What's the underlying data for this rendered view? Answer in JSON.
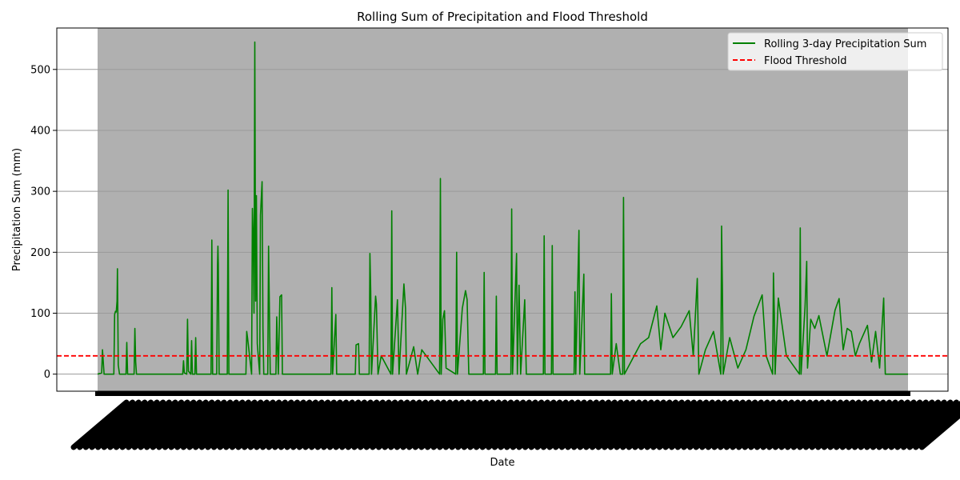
{
  "chart_data": {
    "type": "line",
    "title": "Rolling Sum of Precipitation and Flood Threshold",
    "xlabel": "Date",
    "ylabel": "Precipitation Sum (mm)",
    "ylim": [
      -28,
      568
    ],
    "yticks": [
      0,
      100,
      200,
      300,
      400,
      500
    ],
    "grid": "y-axis gridlines",
    "legend_position": "top-right",
    "x_tick_labels": "dense rotated date labels (illegible)",
    "colors": {
      "rolling_line": "#008000",
      "threshold_line": "#ff0000",
      "plot_background": "#b0b0b0",
      "gridline": "#b0b0b0"
    },
    "series": [
      {
        "name": "Rolling 3-day Precipitation Sum",
        "style": "solid",
        "color": "#008000",
        "points": [
          [
            0.0,
            0
          ],
          [
            0.5,
            2
          ],
          [
            0.6,
            40
          ],
          [
            0.8,
            0
          ],
          [
            1.0,
            0
          ],
          [
            2.0,
            0
          ],
          [
            2.1,
            98
          ],
          [
            2.2,
            103
          ],
          [
            2.3,
            102
          ],
          [
            2.4,
            120
          ],
          [
            2.45,
            173
          ],
          [
            2.55,
            15
          ],
          [
            2.7,
            0
          ],
          [
            3.5,
            0
          ],
          [
            3.6,
            52
          ],
          [
            3.7,
            0
          ],
          [
            4.5,
            0
          ],
          [
            4.6,
            75
          ],
          [
            4.7,
            20
          ],
          [
            4.8,
            0
          ],
          [
            5.0,
            0
          ],
          [
            5.5,
            0
          ],
          [
            10.5,
            0
          ],
          [
            10.6,
            22
          ],
          [
            10.7,
            2
          ],
          [
            11.0,
            0
          ],
          [
            11.1,
            90
          ],
          [
            11.2,
            5
          ],
          [
            11.5,
            0
          ],
          [
            11.6,
            55
          ],
          [
            11.7,
            0
          ],
          [
            12.0,
            0
          ],
          [
            12.1,
            60
          ],
          [
            12.2,
            0
          ],
          [
            14.0,
            0
          ],
          [
            14.1,
            220
          ],
          [
            14.2,
            0
          ],
          [
            14.7,
            0
          ],
          [
            14.8,
            180
          ],
          [
            14.85,
            210
          ],
          [
            14.9,
            180
          ],
          [
            15.0,
            0
          ],
          [
            16.0,
            0
          ],
          [
            16.1,
            302
          ],
          [
            16.2,
            0
          ],
          [
            18.3,
            0
          ],
          [
            18.4,
            70
          ],
          [
            18.5,
            60
          ],
          [
            19.0,
            0
          ],
          [
            19.1,
            272
          ],
          [
            19.2,
            225
          ],
          [
            19.3,
            100
          ],
          [
            19.4,
            545
          ],
          [
            19.5,
            120
          ],
          [
            19.6,
            293
          ],
          [
            19.7,
            50
          ],
          [
            20.0,
            0
          ],
          [
            20.1,
            261
          ],
          [
            20.3,
            316
          ],
          [
            20.4,
            75
          ],
          [
            20.5,
            0
          ],
          [
            21.0,
            0
          ],
          [
            21.1,
            210
          ],
          [
            21.2,
            100
          ],
          [
            21.3,
            0
          ],
          [
            22.0,
            0
          ],
          [
            22.1,
            94
          ],
          [
            22.2,
            45
          ],
          [
            22.3,
            0
          ],
          [
            22.5,
            127
          ],
          [
            22.7,
            130
          ],
          [
            22.8,
            0
          ],
          [
            28.8,
            0
          ],
          [
            28.9,
            142
          ],
          [
            29.0,
            0
          ],
          [
            29.4,
            98
          ],
          [
            29.5,
            0
          ],
          [
            31.8,
            0
          ],
          [
            31.9,
            48
          ],
          [
            32.2,
            50
          ],
          [
            32.3,
            0
          ],
          [
            33.5,
            0
          ],
          [
            33.6,
            198
          ],
          [
            33.7,
            136
          ],
          [
            33.8,
            0
          ],
          [
            34.3,
            128
          ],
          [
            34.4,
            115
          ],
          [
            34.6,
            0
          ],
          [
            35.0,
            30
          ],
          [
            36.2,
            0
          ],
          [
            36.3,
            268
          ],
          [
            36.4,
            0
          ],
          [
            37.0,
            122
          ],
          [
            37.2,
            0
          ],
          [
            37.8,
            148
          ],
          [
            38.0,
            108
          ],
          [
            38.1,
            0
          ],
          [
            39.0,
            45
          ],
          [
            39.5,
            0
          ],
          [
            40.0,
            40
          ],
          [
            42.2,
            0
          ],
          [
            42.3,
            321
          ],
          [
            42.4,
            0
          ],
          [
            42.6,
            90
          ],
          [
            42.8,
            104
          ],
          [
            43.0,
            10
          ],
          [
            44.2,
            0
          ],
          [
            44.3,
            200
          ],
          [
            44.4,
            0
          ],
          [
            45.0,
            108
          ],
          [
            45.4,
            137
          ],
          [
            45.6,
            122
          ],
          [
            45.8,
            0
          ],
          [
            47.6,
            0
          ],
          [
            47.7,
            167
          ],
          [
            47.8,
            0
          ],
          [
            49.1,
            0
          ],
          [
            49.2,
            128
          ],
          [
            49.3,
            0
          ],
          [
            51.0,
            0
          ],
          [
            51.1,
            271
          ],
          [
            51.2,
            0
          ],
          [
            51.7,
            198
          ],
          [
            51.8,
            0
          ],
          [
            52.0,
            146
          ],
          [
            52.2,
            0
          ],
          [
            52.7,
            122
          ],
          [
            52.9,
            0
          ],
          [
            55.0,
            0
          ],
          [
            55.1,
            227
          ],
          [
            55.2,
            0
          ],
          [
            56.0,
            0
          ],
          [
            56.1,
            211
          ],
          [
            56.2,
            0
          ],
          [
            58.8,
            0
          ],
          [
            58.9,
            135
          ],
          [
            59.0,
            0
          ],
          [
            59.4,
            236
          ],
          [
            59.5,
            0
          ],
          [
            60.0,
            164
          ],
          [
            60.1,
            0
          ],
          [
            63.3,
            0
          ],
          [
            63.4,
            132
          ],
          [
            63.5,
            0
          ],
          [
            64.0,
            50
          ],
          [
            64.5,
            0
          ],
          [
            64.8,
            0
          ],
          [
            64.9,
            290
          ],
          [
            65.0,
            0
          ],
          [
            67.0,
            50
          ],
          [
            68.0,
            60
          ],
          [
            69.0,
            112
          ],
          [
            69.5,
            40
          ],
          [
            70.0,
            100
          ],
          [
            71.0,
            60
          ],
          [
            72.0,
            78
          ],
          [
            73.0,
            104
          ],
          [
            73.5,
            30
          ],
          [
            74.0,
            157
          ],
          [
            74.2,
            0
          ],
          [
            75.0,
            40
          ],
          [
            76.0,
            70
          ],
          [
            76.9,
            0
          ],
          [
            77.0,
            243
          ],
          [
            77.1,
            142
          ],
          [
            77.2,
            0
          ],
          [
            78.0,
            60
          ],
          [
            79.0,
            10
          ],
          [
            80.0,
            40
          ],
          [
            81.0,
            95
          ],
          [
            82.0,
            130
          ],
          [
            82.5,
            30
          ],
          [
            83.3,
            0
          ],
          [
            83.4,
            166
          ],
          [
            83.5,
            100
          ],
          [
            83.6,
            0
          ],
          [
            84.0,
            125
          ],
          [
            85.0,
            30
          ],
          [
            86.6,
            0
          ],
          [
            86.7,
            240
          ],
          [
            86.8,
            0
          ],
          [
            87.3,
            110
          ],
          [
            87.5,
            185
          ],
          [
            87.6,
            10
          ],
          [
            88.0,
            90
          ],
          [
            88.5,
            75
          ],
          [
            89.0,
            96
          ],
          [
            90.0,
            30
          ],
          [
            91.0,
            105
          ],
          [
            91.5,
            124
          ],
          [
            92.0,
            40
          ],
          [
            92.5,
            75
          ],
          [
            93.0,
            70
          ],
          [
            93.5,
            30
          ],
          [
            94.0,
            50
          ],
          [
            95.0,
            80
          ],
          [
            95.5,
            20
          ],
          [
            96.0,
            70
          ],
          [
            96.5,
            10
          ],
          [
            97.0,
            125
          ],
          [
            97.2,
            0
          ],
          [
            100.0,
            0
          ]
        ]
      },
      {
        "name": "Flood Threshold",
        "style": "dashed",
        "color": "#ff0000",
        "value": 30
      }
    ]
  }
}
